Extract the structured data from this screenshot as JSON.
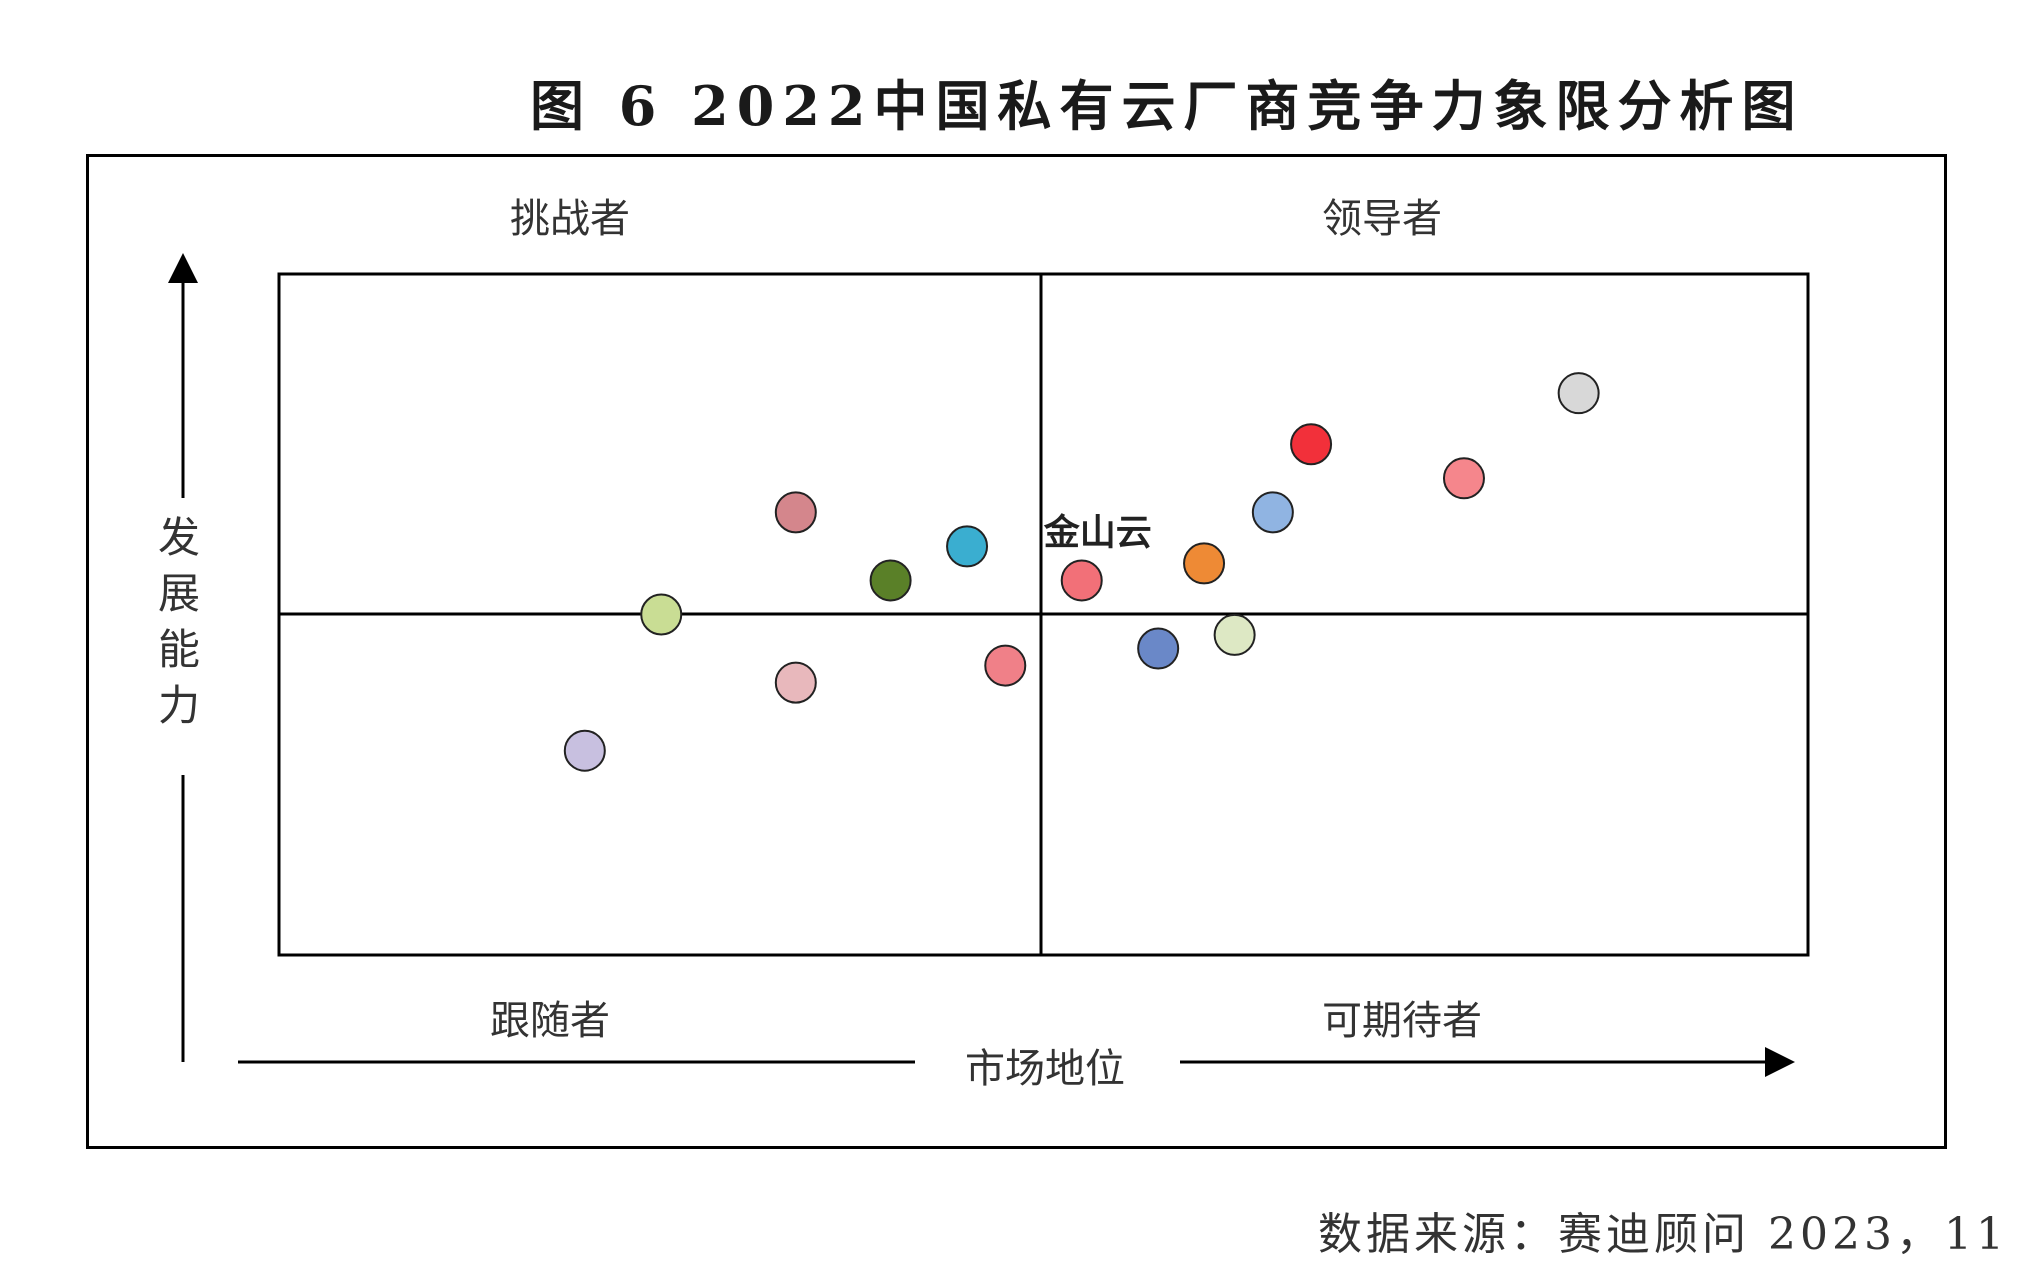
{
  "title": "图 6  2022中国私有云厂商竞争力象限分析图",
  "source": "数据来源：赛迪顾问   2023，11",
  "chart_data": {
    "type": "scatter",
    "xlabel": "市场地位",
    "ylabel": "发展能力",
    "quadrants": {
      "top_left": "挑战者",
      "top_right": "领导者",
      "bottom_left": "跟随者",
      "bottom_right": "可期待者"
    },
    "xlim": [
      0,
      100
    ],
    "ylim": [
      0,
      100
    ],
    "midpoint": [
      50,
      50
    ],
    "points": [
      {
        "x": 25.0,
        "y": 50.0,
        "color": "#c9dd94"
      },
      {
        "x": 33.8,
        "y": 65.0,
        "color": "#d4868c"
      },
      {
        "x": 40.0,
        "y": 55.0,
        "color": "#5a8028"
      },
      {
        "x": 45.0,
        "y": 60.0,
        "color": "#3aaed0"
      },
      {
        "x": 33.8,
        "y": 40.0,
        "color": "#e8b8bc"
      },
      {
        "x": 47.5,
        "y": 42.5,
        "color": "#f08088"
      },
      {
        "x": 20.0,
        "y": 30.0,
        "color": "#c8c0e0"
      },
      {
        "x": 52.5,
        "y": 55.0,
        "color": "#f27078",
        "label": "金山云"
      },
      {
        "x": 60.5,
        "y": 57.5,
        "color": "#ee8a35"
      },
      {
        "x": 65.0,
        "y": 65.0,
        "color": "#90b4e2"
      },
      {
        "x": 67.5,
        "y": 75.0,
        "color": "#f2303a"
      },
      {
        "x": 77.5,
        "y": 70.0,
        "color": "#f5868c"
      },
      {
        "x": 85.0,
        "y": 82.5,
        "color": "#d8d8d8"
      },
      {
        "x": 57.5,
        "y": 45.0,
        "color": "#6a88c8"
      },
      {
        "x": 62.5,
        "y": 47.0,
        "color": "#dde8c4"
      }
    ]
  }
}
